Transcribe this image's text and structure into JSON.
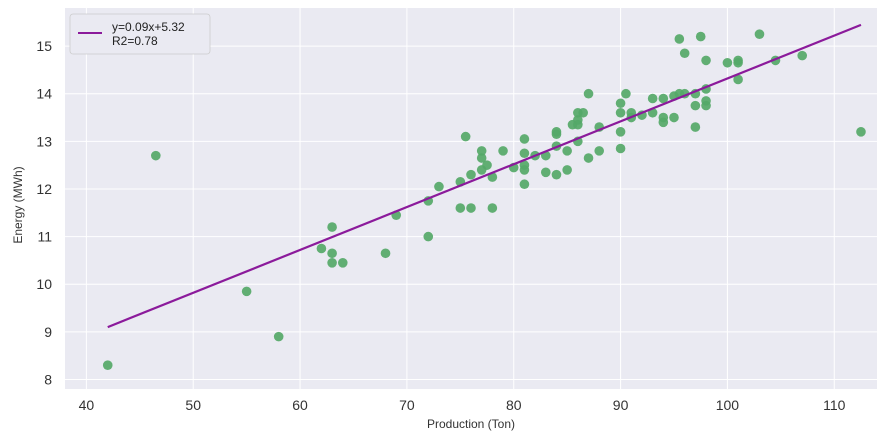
{
  "chart_data": {
    "type": "scatter",
    "title": "",
    "xlabel": "Production (Ton)",
    "ylabel": "Energy (MWh)",
    "xlim": [
      38,
      114
    ],
    "ylim": [
      7.8,
      15.8
    ],
    "xticks": [
      40,
      50,
      60,
      70,
      80,
      90,
      100,
      110
    ],
    "yticks": [
      8,
      9,
      10,
      11,
      12,
      13,
      14,
      15
    ],
    "grid": true,
    "legend": {
      "placement": "top-left",
      "entries": [
        "y=0.09x+5.32",
        "R2=0.78"
      ]
    },
    "colors": {
      "points": "#55a868",
      "line": "#8b1a9b",
      "background": "#eaeaf2",
      "grid": "#ffffff"
    },
    "series": [
      {
        "type": "scatter",
        "points": [
          [
            42,
            8.3
          ],
          [
            46.5,
            12.7
          ],
          [
            55,
            9.85
          ],
          [
            58,
            8.9
          ],
          [
            62,
            10.75
          ],
          [
            63,
            11.2
          ],
          [
            63,
            10.65
          ],
          [
            63,
            10.45
          ],
          [
            64,
            10.45
          ],
          [
            68,
            10.65
          ],
          [
            69,
            11.45
          ],
          [
            72,
            11.75
          ],
          [
            72,
            11.0
          ],
          [
            73,
            12.05
          ],
          [
            75,
            12.15
          ],
          [
            75,
            11.6
          ],
          [
            75.5,
            13.1
          ],
          [
            76,
            11.6
          ],
          [
            76,
            12.3
          ],
          [
            77,
            12.65
          ],
          [
            77,
            12.8
          ],
          [
            77,
            12.4
          ],
          [
            77.5,
            12.5
          ],
          [
            78,
            12.25
          ],
          [
            78,
            11.6
          ],
          [
            79,
            12.8
          ],
          [
            80,
            12.45
          ],
          [
            81,
            12.5
          ],
          [
            81,
            12.1
          ],
          [
            81,
            12.75
          ],
          [
            81,
            13.05
          ],
          [
            81,
            12.4
          ],
          [
            82,
            12.7
          ],
          [
            83,
            12.7
          ],
          [
            83,
            12.35
          ],
          [
            84,
            12.9
          ],
          [
            84,
            13.15
          ],
          [
            84,
            12.3
          ],
          [
            84,
            13.2
          ],
          [
            85,
            12.4
          ],
          [
            85,
            12.8
          ],
          [
            85.5,
            13.35
          ],
          [
            86,
            13.0
          ],
          [
            86,
            13.45
          ],
          [
            86,
            13.6
          ],
          [
            86,
            13.35
          ],
          [
            86.5,
            13.6
          ],
          [
            87,
            12.65
          ],
          [
            87,
            14.0
          ],
          [
            88,
            12.8
          ],
          [
            88,
            13.3
          ],
          [
            90,
            13.2
          ],
          [
            90,
            12.85
          ],
          [
            90,
            13.8
          ],
          [
            90,
            13.6
          ],
          [
            90.5,
            14.0
          ],
          [
            91,
            13.5
          ],
          [
            91,
            13.6
          ],
          [
            92,
            13.55
          ],
          [
            93,
            13.6
          ],
          [
            93,
            13.9
          ],
          [
            94,
            13.4
          ],
          [
            94,
            13.5
          ],
          [
            94,
            13.9
          ],
          [
            95,
            13.95
          ],
          [
            95,
            13.5
          ],
          [
            95.5,
            14.0
          ],
          [
            95.5,
            15.15
          ],
          [
            96,
            14.85
          ],
          [
            96,
            14.0
          ],
          [
            97,
            13.3
          ],
          [
            97,
            13.75
          ],
          [
            97,
            14.0
          ],
          [
            97.5,
            15.2
          ],
          [
            98,
            14.7
          ],
          [
            98,
            13.85
          ],
          [
            98,
            14.1
          ],
          [
            98,
            13.75
          ],
          [
            100,
            14.65
          ],
          [
            101,
            14.7
          ],
          [
            101,
            14.3
          ],
          [
            101,
            14.65
          ],
          [
            103,
            15.25
          ],
          [
            104.5,
            14.7
          ],
          [
            107,
            14.8
          ],
          [
            112.5,
            13.2
          ]
        ]
      },
      {
        "type": "line",
        "slope": 0.09,
        "intercept": 5.32,
        "x_range": [
          42,
          112.5
        ]
      }
    ]
  }
}
